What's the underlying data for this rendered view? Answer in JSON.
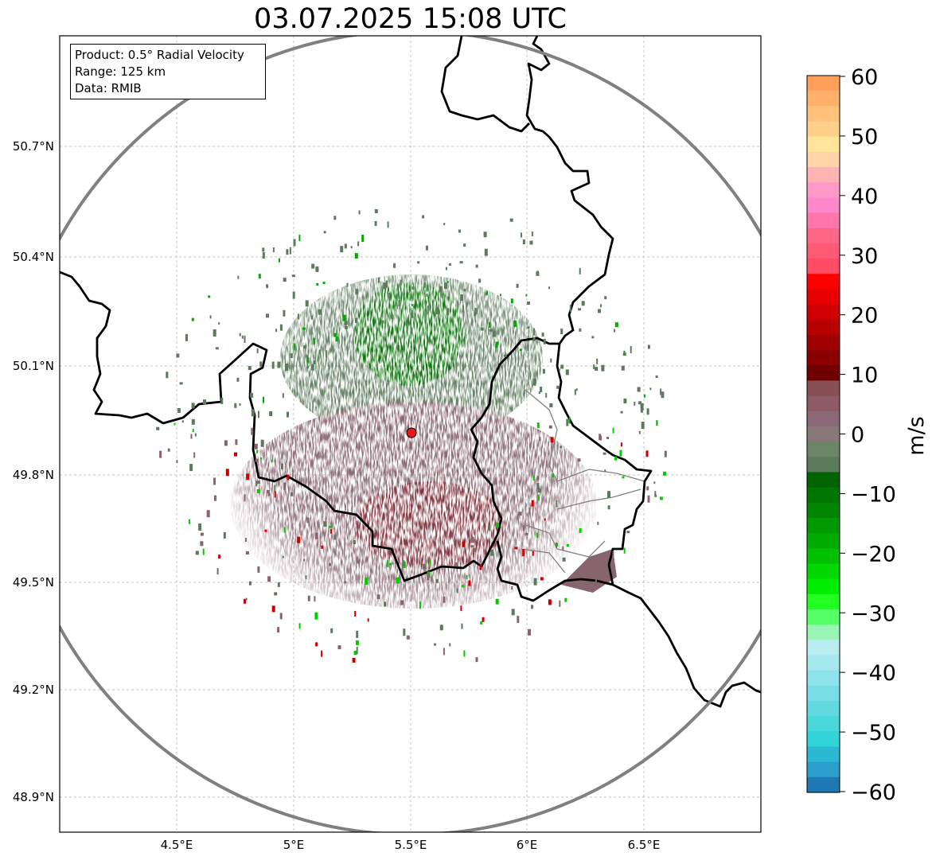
{
  "title": "03.07.2025 15:08 UTC",
  "info_box": {
    "product": "Product: 0.5° Radial Velocity",
    "range": "Range: 125 km",
    "data": "Data: RMIB"
  },
  "map": {
    "lon_ticks": [
      "4.5°E",
      "5°E",
      "5.5°E",
      "6°E",
      "6.5°E"
    ],
    "lat_ticks": [
      "50.7°N",
      "50.4°N",
      "50.1°N",
      "49.8°N",
      "49.5°N",
      "49.2°N",
      "48.9°N"
    ],
    "radar_site": {
      "lon": 5.505,
      "lat": 49.914
    },
    "range_ring_color": "#808080",
    "site_marker_color": "#e41a1c",
    "border_color": "#000000",
    "admin_border_color": "#808080"
  },
  "colorbar": {
    "unit": "m/s",
    "ticks": [
      "60",
      "50",
      "40",
      "30",
      "20",
      "10",
      "0",
      "−10",
      "−20",
      "−30",
      "−40",
      "−50",
      "−60"
    ],
    "colors_top_to_bottom": [
      "#ff9f5a",
      "#ffb06a",
      "#ffc07a",
      "#ffd08a",
      "#ffe59a",
      "#ffd4a8",
      "#ffb3b3",
      "#ff99c8",
      "#ff88cc",
      "#ff77aa",
      "#ff6688",
      "#ff5a75",
      "#ff4b63",
      "#ff0000",
      "#e80000",
      "#d00000",
      "#b80000",
      "#a00000",
      "#8a0000",
      "#700000",
      "#885055",
      "#8f5a68",
      "#8a6878",
      "#88787a",
      "#6b8566",
      "#5c7a5c",
      "#006400",
      "#007500",
      "#008600",
      "#009900",
      "#00aa00",
      "#00c000",
      "#00d800",
      "#00ee00",
      "#22ff22",
      "#55ff66",
      "#99f5b4",
      "#b8eef2",
      "#a4e8ee",
      "#8ee3ea",
      "#78dde5",
      "#60dae0",
      "#48d8dc",
      "#30d5da",
      "#2ab8d2",
      "#2a9fcc",
      "#1f78b4"
    ]
  }
}
